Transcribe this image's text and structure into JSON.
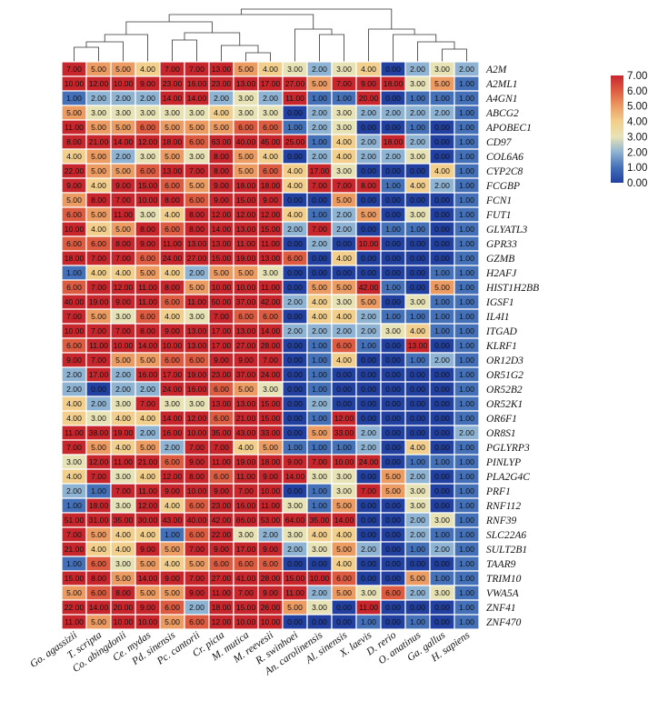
{
  "chart_data": {
    "type": "heatmap",
    "title": "",
    "columns": [
      "Go. agassizii",
      "T. scripta",
      "Co. abingdonii",
      "Ce. mydas",
      "Pd. sinensis",
      "Pc. cantorii",
      "Cr. picta",
      "M. mutica",
      "M. reevesii",
      "R. swinhoei",
      "An. carolinensis",
      "Al. sinensis",
      "X. laevis",
      "D. rerio",
      "O. anatinus",
      "Ga. gallus",
      "H. sapiens"
    ],
    "rows": [
      "A2M",
      "A2ML1",
      "A4GN1",
      "ABCG2",
      "APOBEC1",
      "CD97",
      "COL6A6",
      "CYP2C8",
      "FCGBP",
      "FCN1",
      "FUT1",
      "GLYATL3",
      "GPR33",
      "GZMB",
      "H2AFJ",
      "HIST1H2BB",
      "IGSF1",
      "IL4I1",
      "ITGAD",
      "KLRF1",
      "OR12D3",
      "OR51G2",
      "OR52B2",
      "OR52K1",
      "OR6F1",
      "OR8S1",
      "PGLYRP3",
      "PINLYP",
      "PLA2G4C",
      "PRF1",
      "RNF112",
      "RNF39",
      "SLC22A6",
      "SULT2B1",
      "TAAR9",
      "TRIM10",
      "VWA5A",
      "ZNF41",
      "ZNF470"
    ],
    "values": [
      [
        7,
        5,
        5,
        4,
        7,
        7,
        13,
        5,
        4,
        3,
        2,
        3,
        4,
        0,
        2,
        3,
        2
      ],
      [
        10,
        12,
        10,
        9,
        23,
        16,
        23,
        13,
        17,
        27,
        5,
        7,
        9,
        18,
        3,
        5,
        1
      ],
      [
        1,
        2,
        2,
        2,
        14,
        14,
        2,
        3,
        2,
        11,
        1,
        1,
        20,
        0,
        1,
        1,
        1
      ],
      [
        5,
        3,
        3,
        3,
        3,
        3,
        4,
        3,
        3,
        0,
        2,
        3,
        2,
        2,
        2,
        2,
        1
      ],
      [
        11,
        5,
        5,
        6,
        5,
        5,
        5,
        6,
        6,
        1,
        2,
        3,
        0,
        0,
        1,
        0,
        1
      ],
      [
        8,
        21,
        14,
        12,
        18,
        6,
        63,
        40,
        45,
        25,
        1,
        4,
        2,
        18,
        2,
        0,
        1
      ],
      [
        4,
        5,
        2,
        3,
        5,
        3,
        8,
        5,
        4,
        0,
        2,
        4,
        2,
        2,
        3,
        0,
        1
      ],
      [
        22,
        5,
        5,
        6,
        13,
        7,
        8,
        5,
        6,
        4,
        17,
        3,
        0,
        0,
        0,
        4,
        1
      ],
      [
        9,
        4,
        9,
        15,
        6,
        5,
        9,
        18,
        18,
        4,
        7,
        7,
        8,
        1,
        4,
        2,
        1
      ],
      [
        5,
        8,
        7,
        10,
        8,
        6,
        9,
        15,
        9,
        0,
        0,
        5,
        0,
        0,
        0,
        0,
        1
      ],
      [
        6,
        5,
        11,
        3,
        4,
        8,
        12,
        12,
        12,
        4,
        1,
        2,
        5,
        0,
        3,
        0,
        1
      ],
      [
        10,
        4,
        5,
        8,
        6,
        8,
        14,
        13,
        15,
        2,
        7,
        2,
        0,
        1,
        1,
        0,
        1
      ],
      [
        6,
        6,
        8,
        9,
        11,
        13,
        13,
        11,
        11,
        0,
        2,
        0,
        10,
        0,
        0,
        0,
        1
      ],
      [
        18,
        7,
        7,
        6,
        24,
        27,
        15,
        19,
        13,
        6,
        0,
        4,
        0,
        0,
        0,
        0,
        1
      ],
      [
        1,
        4,
        4,
        5,
        4,
        2,
        5,
        5,
        3,
        0,
        0,
        0,
        0,
        0,
        0,
        1,
        1
      ],
      [
        6,
        7,
        12,
        11,
        8,
        5,
        10,
        10,
        11,
        0,
        5,
        5,
        42,
        1,
        0,
        5,
        1
      ],
      [
        40,
        19,
        9,
        11,
        6,
        11,
        50,
        37,
        42,
        2,
        4,
        3,
        5,
        0,
        3,
        1,
        1
      ],
      [
        7,
        5,
        3,
        6,
        4,
        3,
        7,
        6,
        6,
        0,
        4,
        4,
        2,
        1,
        1,
        1,
        1
      ],
      [
        10,
        7,
        7,
        8,
        9,
        13,
        17,
        13,
        14,
        2,
        2,
        2,
        2,
        3,
        4,
        1,
        1
      ],
      [
        6,
        11,
        10,
        14,
        10,
        13,
        17,
        27,
        28,
        0,
        1,
        6,
        1,
        0,
        13,
        0,
        1
      ],
      [
        9,
        7,
        5,
        5,
        6,
        6,
        9,
        9,
        7,
        0,
        1,
        4,
        0,
        0,
        1,
        2,
        1
      ],
      [
        2,
        17,
        2,
        16,
        17,
        19,
        23,
        37,
        24,
        0,
        1,
        0,
        0,
        0,
        0,
        0,
        1
      ],
      [
        2,
        0,
        2,
        2,
        24,
        16,
        6,
        5,
        3,
        0,
        1,
        0,
        0,
        0,
        0,
        0,
        1
      ],
      [
        4,
        2,
        3,
        7,
        3,
        3,
        13,
        13,
        15,
        0,
        2,
        0,
        0,
        0,
        0,
        0,
        1
      ],
      [
        4,
        3,
        4,
        4,
        14,
        12,
        6,
        21,
        15,
        0,
        1,
        12,
        0,
        0,
        0,
        0,
        1
      ],
      [
        11,
        38,
        19,
        2,
        16,
        10,
        35,
        43,
        33,
        0,
        5,
        33,
        2,
        0,
        0,
        0,
        2
      ],
      [
        7,
        5,
        4,
        5,
        2,
        7,
        7,
        4,
        5,
        1,
        1,
        1,
        2,
        0,
        4,
        0,
        1
      ],
      [
        3,
        12,
        11,
        21,
        6,
        9,
        11,
        19,
        18,
        9,
        7,
        10,
        24,
        0,
        1,
        1,
        1
      ],
      [
        4,
        7,
        3,
        4,
        12,
        8,
        6,
        11,
        9,
        14,
        3,
        3,
        0,
        5,
        2,
        0,
        1
      ],
      [
        2,
        1,
        7,
        11,
        9,
        10,
        9,
        7,
        10,
        0,
        1,
        3,
        7,
        5,
        3,
        0,
        1
      ],
      [
        1,
        18,
        3,
        12,
        4,
        6,
        23,
        16,
        11,
        3,
        1,
        5,
        0,
        0,
        3,
        0,
        1
      ],
      [
        51,
        31,
        35,
        30,
        43,
        40,
        42,
        86,
        53,
        64,
        35,
        14,
        0,
        0,
        2,
        3,
        1
      ],
      [
        7,
        5,
        4,
        4,
        1,
        6,
        22,
        3,
        2,
        3,
        4,
        4,
        0,
        0,
        2,
        1,
        1
      ],
      [
        21,
        4,
        4,
        9,
        5,
        7,
        9,
        17,
        9,
        2,
        3,
        5,
        2,
        0,
        1,
        2,
        1
      ],
      [
        1,
        6,
        3,
        5,
        4,
        5,
        6,
        6,
        6,
        0,
        0,
        4,
        0,
        0,
        0,
        0,
        1
      ],
      [
        15,
        8,
        5,
        14,
        9,
        7,
        27,
        41,
        28,
        15,
        10,
        6,
        0,
        0,
        5,
        1,
        1
      ],
      [
        5,
        6,
        8,
        5,
        5,
        9,
        11,
        7,
        9,
        11,
        2,
        5,
        3,
        6,
        2,
        3,
        1
      ],
      [
        22,
        14,
        20,
        9,
        6,
        2,
        18,
        15,
        26,
        5,
        3,
        0,
        11,
        0,
        0,
        0,
        1
      ],
      [
        11,
        5,
        10,
        10,
        5,
        6,
        12,
        10,
        10,
        0,
        0,
        0,
        1,
        0,
        1,
        0,
        1
      ]
    ],
    "color_scale": {
      "min": 0,
      "max": 7,
      "clip": true,
      "colors": [
        "#2140a0",
        "#4470b8",
        "#8fb3d2",
        "#e8e3b6",
        "#f2cf8c",
        "#ec9b63",
        "#dd5c41",
        "#c8262d"
      ]
    },
    "legend": {
      "ticks": [
        "7.00",
        "6.00",
        "5.00",
        "4.00",
        "3.00",
        "2.00",
        "1.00",
        "0.00"
      ],
      "placement": "top-right"
    },
    "dendrogram": "columns (top)"
  }
}
